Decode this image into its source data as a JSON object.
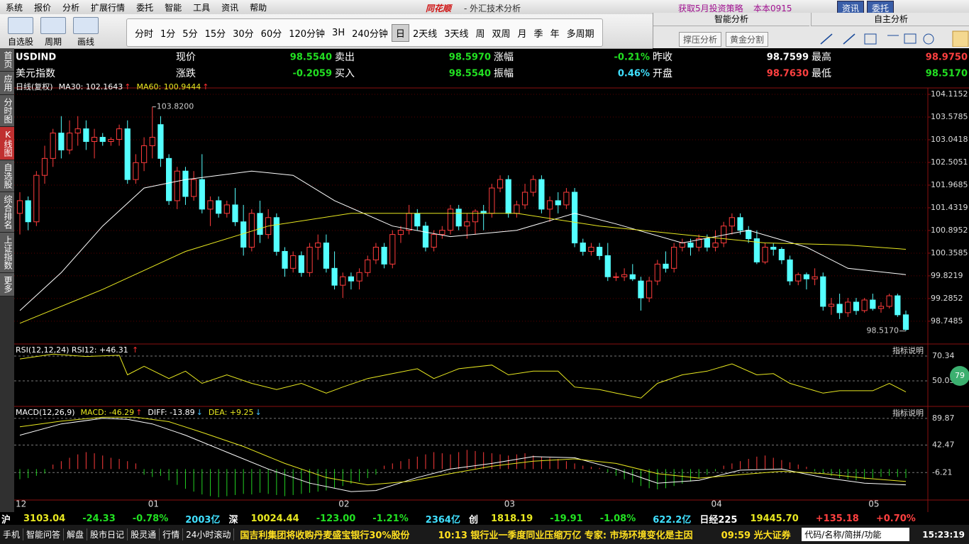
{
  "menu": [
    "系统",
    "报价",
    "分析",
    "扩展行情",
    "委托",
    "智能",
    "工具",
    "资讯",
    "帮助"
  ],
  "brand": "同花顺",
  "app_title": "- 外汇技术分析",
  "promo": "获取5月投资策略",
  "version": "本本0915",
  "top_buttons": [
    "资讯",
    "委托"
  ],
  "tools": [
    "自选股",
    "周期",
    "画线"
  ],
  "periods": [
    "分时",
    "1分",
    "5分",
    "15分",
    "30分",
    "60分",
    "120分钟",
    "3H",
    "240分钟",
    "日",
    "2天线",
    "3天线",
    "周",
    "双周",
    "月",
    "季",
    "年",
    "多周期"
  ],
  "smart": {
    "title": "智能分析",
    "buttons": [
      "撑压分析",
      "黄金分割"
    ]
  },
  "self_analysis": "自主分析",
  "sidebar": [
    "首页",
    "应用",
    "分时图",
    "K线图",
    "自选股",
    "综合排名",
    "上证指数",
    "更多"
  ],
  "quote": {
    "symbol": "USDIND",
    "name": "美元指数",
    "row1": [
      {
        "label": "现价",
        "value": "98.5540",
        "color": "#22e022"
      },
      {
        "label": "卖出",
        "value": "98.5970",
        "color": "#22e022"
      },
      {
        "label": "涨幅",
        "value": "-0.21%",
        "color": "#22e022"
      },
      {
        "label": "昨收",
        "value": "98.7599",
        "color": "#ffffff"
      },
      {
        "label": "最高",
        "value": "98.9750",
        "color": "#ff4040"
      }
    ],
    "row2": [
      {
        "label": "涨跌",
        "value": "-0.2059",
        "color": "#22e022"
      },
      {
        "label": "买入",
        "value": "98.5540",
        "color": "#22e022"
      },
      {
        "label": "振幅",
        "value": "0.46%",
        "color": "#40e0ff"
      },
      {
        "label": "开盘",
        "value": "98.7630",
        "color": "#ff4040"
      },
      {
        "label": "最低",
        "value": "98.5170",
        "color": "#22e022"
      }
    ]
  },
  "kline": {
    "header": [
      {
        "text": "日线(复权)",
        "arrow": null
      },
      {
        "text": "MA30: 102.1643",
        "arrow": "↑"
      },
      {
        "text": "MA60: 100.9444",
        "arrow": "↑"
      }
    ],
    "high_label": "103.8200",
    "low_label": "98.5170",
    "ylim": [
      98.26,
      104.2
    ],
    "yticks": [
      104.1152,
      103.5785,
      103.0418,
      102.5051,
      101.9685,
      101.4319,
      100.8952,
      100.3585,
      99.8219,
      99.2852,
      98.7485
    ],
    "dates": [
      "12",
      null,
      null,
      null,
      null,
      null,
      null,
      null,
      null,
      null,
      null,
      null,
      null,
      null,
      null,
      null,
      "01",
      null,
      null,
      null,
      null,
      null,
      null,
      null,
      null,
      null,
      null,
      null,
      null,
      null,
      null,
      null,
      null,
      null,
      null,
      null,
      null,
      null,
      null,
      "02",
      null,
      null,
      null,
      null,
      null,
      null,
      null,
      null,
      null,
      null,
      null,
      null,
      null,
      null,
      null,
      null,
      null,
      null,
      null,
      "03",
      null,
      null,
      null,
      null,
      null,
      null,
      null,
      null,
      null,
      null,
      null,
      null,
      null,
      null,
      null,
      null,
      null,
      null,
      null,
      null,
      null,
      null,
      null,
      null,
      "04",
      null,
      null,
      null,
      null,
      null,
      null,
      null,
      null,
      null,
      null,
      null,
      null,
      null,
      null,
      null,
      null,
      null,
      null,
      "05",
      null,
      null,
      null,
      null
    ],
    "candles": [
      [
        101.3,
        101.8,
        100.8,
        101.6
      ],
      [
        101.6,
        101.7,
        100.9,
        101.1
      ],
      [
        101.1,
        102.3,
        101.0,
        102.2
      ],
      [
        102.2,
        102.9,
        102.0,
        102.6
      ],
      [
        102.6,
        103.3,
        102.4,
        103.2
      ],
      [
        103.2,
        103.6,
        102.6,
        102.8
      ],
      [
        102.8,
        103.5,
        102.7,
        103.2
      ],
      [
        103.2,
        103.6,
        102.9,
        103.3
      ],
      [
        103.3,
        103.5,
        102.8,
        103.0
      ],
      [
        103.0,
        103.3,
        102.6,
        103.1
      ],
      [
        103.1,
        103.2,
        102.9,
        103.0
      ],
      [
        103.0,
        103.1,
        102.9,
        103.05
      ],
      [
        103.05,
        103.4,
        102.9,
        103.3
      ],
      [
        103.3,
        103.5,
        102.0,
        102.1
      ],
      [
        102.1,
        102.7,
        102.0,
        102.5
      ],
      [
        102.5,
        103.1,
        102.3,
        102.9
      ],
      [
        102.9,
        103.82,
        102.6,
        103.1
      ],
      [
        103.4,
        103.6,
        102.4,
        102.6
      ],
      [
        102.6,
        102.7,
        101.5,
        101.6
      ],
      [
        101.6,
        102.4,
        101.4,
        102.3
      ],
      [
        102.3,
        102.4,
        101.5,
        101.7
      ],
      [
        101.7,
        102.3,
        101.6,
        102.1
      ],
      [
        102.1,
        102.7,
        101.3,
        101.4
      ],
      [
        101.4,
        101.7,
        101.0,
        101.6
      ],
      [
        101.6,
        101.7,
        101.2,
        101.3
      ],
      [
        101.3,
        101.6,
        101.2,
        101.5
      ],
      [
        101.5,
        101.9,
        101.0,
        101.1
      ],
      [
        101.1,
        101.5,
        100.3,
        100.5
      ],
      [
        100.5,
        101.4,
        100.4,
        101.3
      ],
      [
        101.3,
        101.6,
        100.6,
        100.8
      ],
      [
        100.8,
        101.4,
        100.7,
        101.2
      ],
      [
        101.2,
        101.3,
        100.3,
        100.4
      ],
      [
        100.4,
        100.5,
        99.8,
        100.0
      ],
      [
        100.0,
        100.4,
        99.9,
        100.3
      ],
      [
        100.3,
        100.4,
        99.8,
        99.9
      ],
      [
        99.9,
        100.6,
        99.8,
        100.5
      ],
      [
        100.5,
        100.8,
        100.2,
        100.6
      ],
      [
        100.6,
        100.8,
        99.9,
        100.0
      ],
      [
        100.0,
        100.4,
        99.5,
        99.6
      ],
      [
        99.6,
        99.9,
        99.3,
        99.8
      ],
      [
        99.8,
        99.9,
        99.5,
        99.7
      ],
      [
        99.7,
        100.0,
        99.5,
        99.9
      ],
      [
        99.9,
        100.3,
        99.8,
        100.2
      ],
      [
        100.2,
        100.6,
        100.1,
        100.5
      ],
      [
        100.5,
        100.6,
        100.0,
        100.1
      ],
      [
        100.1,
        100.9,
        100.0,
        100.8
      ],
      [
        100.8,
        101.0,
        100.6,
        100.9
      ],
      [
        100.9,
        101.5,
        100.8,
        101.3
      ],
      [
        101.3,
        101.4,
        100.9,
        101.0
      ],
      [
        101.0,
        101.1,
        100.4,
        100.5
      ],
      [
        100.5,
        100.9,
        100.4,
        100.8
      ],
      [
        100.8,
        101.0,
        100.7,
        100.9
      ],
      [
        100.9,
        101.5,
        100.8,
        101.4
      ],
      [
        101.4,
        101.5,
        100.9,
        101.0
      ],
      [
        101.0,
        101.3,
        100.7,
        101.1
      ],
      [
        101.1,
        101.4,
        100.8,
        101.35
      ],
      [
        101.35,
        101.5,
        100.9,
        101.3
      ],
      [
        101.3,
        102.0,
        101.2,
        101.9
      ],
      [
        101.9,
        102.2,
        101.8,
        102.1
      ],
      [
        102.1,
        102.2,
        101.2,
        101.3
      ],
      [
        101.3,
        101.6,
        101.2,
        101.5
      ],
      [
        101.5,
        102.0,
        101.4,
        101.8
      ],
      [
        101.8,
        102.2,
        101.7,
        102.1
      ],
      [
        102.1,
        102.2,
        101.3,
        101.4
      ],
      [
        101.4,
        101.7,
        101.1,
        101.6
      ],
      [
        101.6,
        101.8,
        101.3,
        101.5
      ],
      [
        101.5,
        101.9,
        101.4,
        101.8
      ],
      [
        101.8,
        101.9,
        100.5,
        100.6
      ],
      [
        100.6,
        100.7,
        100.3,
        100.4
      ],
      [
        100.4,
        100.6,
        100.3,
        100.5
      ],
      [
        100.5,
        100.6,
        100.2,
        100.3
      ],
      [
        100.3,
        100.6,
        99.7,
        99.8
      ],
      [
        99.8,
        99.9,
        99.7,
        99.8
      ],
      [
        99.8,
        100.0,
        99.7,
        99.85
      ],
      [
        99.85,
        100.1,
        99.7,
        99.75
      ],
      [
        99.7,
        99.8,
        99.0,
        99.3
      ],
      [
        99.3,
        99.8,
        99.2,
        99.7
      ],
      [
        99.7,
        100.2,
        99.6,
        100.1
      ],
      [
        100.1,
        100.4,
        99.9,
        100.0
      ],
      [
        100.0,
        100.6,
        99.9,
        100.5
      ],
      [
        100.5,
        100.7,
        100.4,
        100.6
      ],
      [
        100.6,
        100.7,
        100.3,
        100.5
      ],
      [
        100.5,
        100.8,
        100.4,
        100.7
      ],
      [
        100.7,
        100.8,
        100.4,
        100.5
      ],
      [
        100.5,
        100.9,
        100.4,
        100.6
      ],
      [
        100.6,
        101.1,
        100.5,
        101.0
      ],
      [
        101.0,
        101.3,
        100.8,
        101.2
      ],
      [
        101.2,
        101.3,
        100.8,
        100.9
      ],
      [
        100.9,
        101.0,
        100.6,
        100.7
      ],
      [
        100.7,
        100.9,
        100.1,
        100.15
      ],
      [
        100.15,
        100.6,
        100.1,
        100.5
      ],
      [
        100.5,
        100.6,
        100.3,
        100.45
      ],
      [
        100.45,
        100.5,
        100.1,
        100.2
      ],
      [
        100.2,
        100.3,
        99.6,
        99.7
      ],
      [
        99.7,
        99.9,
        99.6,
        99.85
      ],
      [
        99.85,
        99.9,
        99.5,
        99.75
      ],
      [
        99.75,
        100.0,
        99.6,
        99.8
      ],
      [
        99.8,
        99.9,
        99.0,
        99.1
      ],
      [
        99.1,
        99.3,
        98.9,
        99.15
      ],
      [
        99.15,
        99.4,
        98.8,
        98.95
      ],
      [
        98.95,
        99.3,
        98.85,
        99.2
      ],
      [
        99.2,
        99.3,
        98.9,
        99.0
      ],
      [
        99.0,
        99.3,
        98.95,
        99.25
      ],
      [
        99.25,
        99.4,
        99.0,
        99.05
      ],
      [
        99.05,
        99.2,
        98.95,
        99.1
      ],
      [
        99.1,
        99.4,
        99.05,
        99.35
      ],
      [
        99.35,
        99.4,
        98.85,
        98.9
      ],
      [
        98.9,
        99.0,
        98.517,
        98.554
      ]
    ],
    "lines": [
      {
        "name": "MA30",
        "color": "#ffffff",
        "x": [
          0,
          5,
          10,
          15,
          20,
          28,
          33,
          38,
          45,
          52,
          60,
          67,
          72,
          80,
          88,
          95,
          100,
          107
        ],
        "values": [
          99.0,
          99.9,
          101.0,
          101.9,
          102.1,
          102.3,
          102.2,
          101.6,
          101.0,
          100.75,
          100.9,
          101.3,
          101.05,
          100.6,
          100.9,
          100.5,
          100.0,
          99.85
        ]
      },
      {
        "name": "MA60",
        "color": "#e8e820",
        "x": [
          0,
          10,
          20,
          30,
          40,
          50,
          60,
          70,
          80,
          90,
          100,
          107
        ],
        "values": [
          98.7,
          99.5,
          100.4,
          101.0,
          101.3,
          101.3,
          101.3,
          101.0,
          100.8,
          100.6,
          100.55,
          100.45
        ]
      }
    ]
  },
  "rsi": {
    "header": {
      "text": "RSI(12,12,24) RSI12: +46.31",
      "arrow": "↑"
    },
    "note": "指标说明",
    "ylim": [
      30.9,
      78.5
    ],
    "yticks": [
      70.34,
      50.05
    ],
    "color": "#e8e820",
    "x": [
      0,
      4,
      8,
      12,
      13,
      15,
      18,
      20,
      22,
      25,
      28,
      31,
      34,
      37,
      39,
      42,
      45,
      48,
      50,
      53,
      57,
      59,
      62,
      65,
      67,
      70,
      72,
      75,
      77,
      80,
      83,
      86,
      89,
      91,
      93,
      97,
      99,
      103,
      105,
      107
    ],
    "values": [
      68,
      72,
      70,
      71,
      55,
      62,
      52,
      58,
      48,
      55,
      48,
      43,
      48,
      40,
      45,
      52,
      56,
      60,
      52,
      60,
      63,
      55,
      58,
      58,
      45,
      43,
      40,
      36,
      48,
      55,
      58,
      64,
      55,
      56,
      48,
      40,
      42,
      42,
      48,
      41
    ]
  },
  "macd": {
    "header": [
      {
        "text": "MACD(12,26,9)",
        "arrow": null
      },
      {
        "text": "MACD: -46.29",
        "arrow": "↑"
      },
      {
        "text": "DIFF: -13.89",
        "arrow": "↓"
      },
      {
        "text": "DEA: +9.25",
        "arrow": "↓"
      }
    ],
    "note": "指标说明",
    "ylim": [
      -54.9,
      107.3
    ],
    "yticks": [
      89.87,
      42.47,
      -6.21
    ],
    "histogram": [
      -18,
      -16,
      -12,
      -8,
      8,
      14,
      20,
      26,
      30,
      28,
      24,
      20,
      18,
      14,
      10,
      -10,
      -14,
      -12,
      -20,
      -28,
      -35,
      -40,
      -45,
      -48,
      -50,
      -48,
      -46,
      -44,
      -45,
      -42,
      -44,
      -46,
      -48,
      -46,
      -44,
      -42,
      -40,
      -38,
      -34,
      -30,
      -26,
      -22,
      -16,
      -10,
      6,
      10,
      14,
      18,
      22,
      26,
      30,
      28,
      26,
      30,
      34,
      32,
      30,
      28,
      26,
      24,
      26,
      28,
      24,
      22,
      20,
      18,
      14,
      10,
      6,
      4,
      2,
      -6,
      -12,
      -18,
      -24,
      -30,
      -34,
      -36,
      -34,
      -30,
      -26,
      -22,
      -16,
      -10,
      -4,
      6,
      10,
      14,
      18,
      22,
      24,
      20,
      16,
      12,
      8,
      4,
      -4,
      -8,
      -12,
      -16,
      -18,
      -20,
      -18,
      -16,
      -14,
      -12,
      -14,
      -16
    ],
    "lines": [
      {
        "name": "DIFF",
        "color": "#ffffff",
        "x": [
          0,
          5,
          10,
          13,
          16,
          20,
          25,
          30,
          35,
          40,
          43,
          48,
          52,
          57,
          62,
          67,
          72,
          77,
          82,
          87,
          92,
          97,
          102,
          107
        ],
        "values": [
          60,
          80,
          90,
          88,
          80,
          60,
          30,
          0,
          -25,
          -40,
          -38,
          -15,
          0,
          10,
          22,
          20,
          0,
          -25,
          -20,
          -2,
          0,
          -15,
          -25,
          -28
        ]
      },
      {
        "name": "DEA",
        "color": "#e8e820",
        "x": [
          0,
          5,
          10,
          14,
          18,
          22,
          27,
          32,
          37,
          42,
          47,
          52,
          57,
          62,
          67,
          72,
          77,
          82,
          87,
          92,
          97,
          102,
          107
        ],
        "values": [
          75,
          85,
          92,
          92,
          84,
          65,
          40,
          10,
          -15,
          -28,
          -22,
          -8,
          5,
          14,
          18,
          10,
          -8,
          -16,
          -10,
          -4,
          -8,
          -16,
          -22
        ]
      }
    ]
  },
  "badge": "79",
  "ticker": [
    {
      "text": "沪",
      "color": "#ffffff"
    },
    {
      "text": "3103.04",
      "color": "#e8e820"
    },
    {
      "text": "-24.33",
      "color": "#22e022"
    },
    {
      "text": "-0.78%",
      "color": "#22e022"
    },
    {
      "text": "2003亿",
      "color": "#40e0ff"
    },
    {
      "text": "深",
      "color": "#ffffff"
    },
    {
      "text": "10024.44",
      "color": "#e8e820"
    },
    {
      "text": "-123.00",
      "color": "#22e022"
    },
    {
      "text": "-1.21%",
      "color": "#22e022"
    },
    {
      "text": "2364亿",
      "color": "#40e0ff"
    },
    {
      "text": "创",
      "color": "#ffffff"
    },
    {
      "text": "1818.19",
      "color": "#e8e820"
    },
    {
      "text": "-19.91",
      "color": "#22e022"
    },
    {
      "text": "-1.08%",
      "color": "#22e022"
    },
    {
      "text": "622.2亿",
      "color": "#40e0ff"
    },
    {
      "text": "日经225",
      "color": "#ffffff"
    },
    {
      "text": "19445.70",
      "color": "#e8e820"
    },
    {
      "text": "+135.18",
      "color": "#ff4040"
    },
    {
      "text": "+0.70%",
      "color": "#ff4040"
    }
  ],
  "status": {
    "buttons": [
      "手机",
      "智能问答",
      "解盘",
      "股市日记",
      "股灵通",
      "行情",
      "24小时滚动"
    ],
    "news": [
      "国吉利集团将收购丹麦盛宝银行30%股份",
      "10:13 银行业一季度同业压缩万亿 专家: 市场环境变化是主因",
      "09:59 光大证券"
    ],
    "search": "代码/名称/简拼/功能",
    "time": "15:23:19"
  }
}
